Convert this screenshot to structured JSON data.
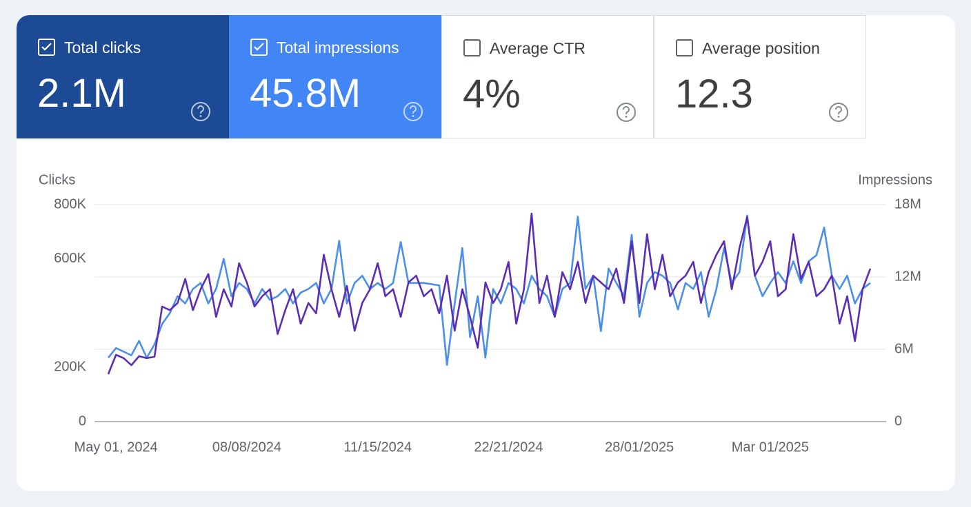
{
  "cards": [
    {
      "label": "Total clicks",
      "value": "2.1M",
      "selected": true,
      "color": "#1c4a94"
    },
    {
      "label": "Total impressions",
      "value": "45.8M",
      "selected": true,
      "color": "#4285f4"
    },
    {
      "label": "Average CTR",
      "value": "4%",
      "selected": false,
      "color": "#ffffff"
    },
    {
      "label": "Average position",
      "value": "12.3",
      "selected": false,
      "color": "#ffffff"
    }
  ],
  "chart_data": {
    "type": "line",
    "y_label": "Clicks",
    "y2_label": "Impressions",
    "categories": [
      null,
      "May 01, 2024",
      null,
      null,
      null,
      null,
      null,
      null,
      null,
      null,
      null,
      null,
      null,
      null,
      null,
      null,
      null,
      null,
      "08/08/2024",
      null,
      null,
      null,
      null,
      null,
      null,
      null,
      null,
      null,
      null,
      null,
      null,
      null,
      null,
      null,
      null,
      "11/15/2024",
      null,
      null,
      null,
      null,
      null,
      null,
      null,
      null,
      null,
      null,
      null,
      null,
      null,
      null,
      null,
      null,
      "22/21/2024",
      null,
      null,
      null,
      null,
      null,
      null,
      null,
      null,
      null,
      null,
      null,
      null,
      null,
      null,
      null,
      null,
      "28/01/2025",
      null,
      null,
      null,
      null,
      null,
      null,
      null,
      null,
      null,
      null,
      null,
      null,
      null,
      null,
      null,
      null,
      "Mar 01/2025",
      null,
      null,
      null,
      null,
      null,
      null,
      null,
      null,
      null,
      null,
      null,
      null,
      null
    ],
    "ylim": [
      0,
      800000
    ],
    "yticks": [
      0,
      {
        "value": 200000,
        "label": "200K"
      },
      {
        "value": 600000,
        "label": "600K"
      },
      {
        "value": 800000,
        "label": "800K"
      }
    ],
    "y2lim": [
      0,
      18000000
    ],
    "y2ticks": [
      0,
      {
        "value": 6000000,
        "label": "6M"
      },
      {
        "value": 12000000,
        "label": "12M"
      },
      {
        "value": 18000000,
        "label": "18M"
      }
    ],
    "grid": true,
    "series": [
      {
        "name": "Impressions",
        "color": "#4a8fe8",
        "axis": "y2",
        "values": [
          5300000,
          6100000,
          5800000,
          5500000,
          6700000,
          5300000,
          6400000,
          8100000,
          9000000,
          10400000,
          9800000,
          11000000,
          11500000,
          9800000,
          11000000,
          13500000,
          10400000,
          11500000,
          11000000,
          9800000,
          11000000,
          10100000,
          10400000,
          11000000,
          9800000,
          10700000,
          11000000,
          11500000,
          9800000,
          11000000,
          15000000,
          9800000,
          11500000,
          12100000,
          11000000,
          11500000,
          11000000,
          11500000,
          14900000,
          11500000,
          11500000,
          11500000,
          11400000,
          11300000,
          4700000,
          9800000,
          14400000,
          7000000,
          10400000,
          5300000,
          11000000,
          9800000,
          11500000,
          11000000,
          9800000,
          12100000,
          11000000,
          10400000,
          8700000,
          11000000,
          11500000,
          17000000,
          11000000,
          12100000,
          7500000,
          12700000,
          11500000,
          10400000,
          15500000,
          8700000,
          11500000,
          12400000,
          12100000,
          11500000,
          9300000,
          11500000,
          11000000,
          12400000,
          8700000,
          11000000,
          14400000,
          11500000,
          12400000,
          17100000,
          12100000,
          10400000,
          11500000,
          12400000,
          11500000,
          13300000,
          11500000,
          13300000,
          13800000,
          16100000,
          12100000,
          11000000,
          12100000,
          9800000,
          11000000,
          11500000
        ]
      },
      {
        "name": "Clicks",
        "color": "#5b2db5",
        "values": [
          175000,
          246000,
          234000,
          208000,
          241000,
          234000,
          239000,
          424000,
          411000,
          437000,
          526000,
          411000,
          488000,
          544000,
          386000,
          488000,
          424000,
          584000,
          513000,
          424000,
          462000,
          488000,
          323000,
          411000,
          488000,
          361000,
          437000,
          399000,
          615000,
          488000,
          386000,
          500000,
          335000,
          437000,
          488000,
          584000,
          462000,
          488000,
          386000,
          513000,
          538000,
          462000,
          488000,
          399000,
          538000,
          335000,
          488000,
          386000,
          272000,
          513000,
          437000,
          488000,
          589000,
          361000,
          488000,
          767000,
          437000,
          538000,
          386000,
          551000,
          488000,
          589000,
          437000,
          538000,
          513000,
          488000,
          564000,
          437000,
          665000,
          437000,
          691000,
          488000,
          615000,
          462000,
          513000,
          538000,
          589000,
          437000,
          551000,
          615000,
          665000,
          488000,
          640000,
          754000,
          538000,
          589000,
          665000,
          462000,
          488000,
          691000,
          526000,
          589000,
          462000,
          488000,
          538000,
          361000,
          462000,
          297000,
          488000,
          564000
        ]
      }
    ]
  }
}
